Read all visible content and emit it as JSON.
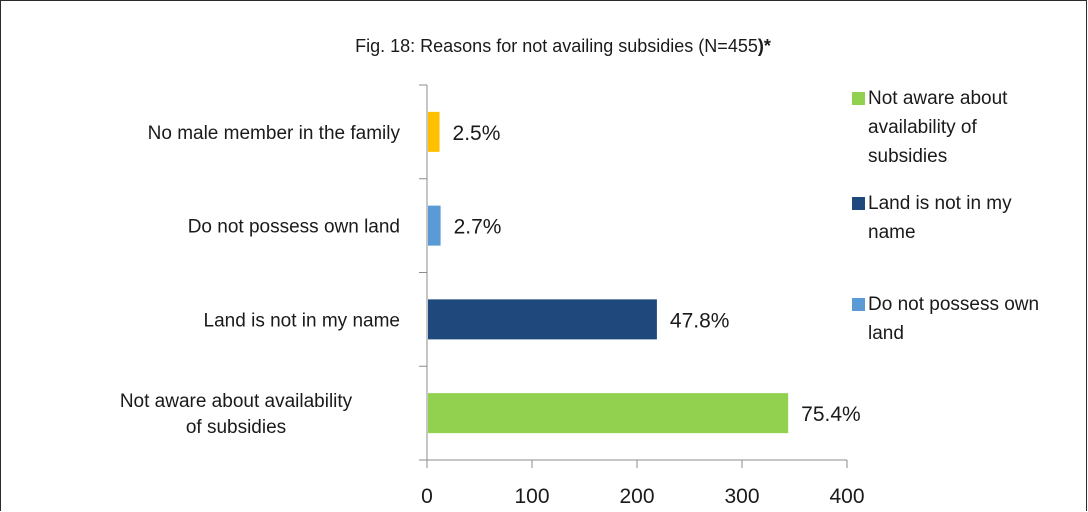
{
  "chart_data": {
    "type": "bar",
    "orientation": "horizontal",
    "title": "Fig. 18: Reasons for not availing subsidies (N=455",
    "title_suffix": ")*",
    "categories": [
      "No male member in the family",
      "Do not possess own land",
      "Land is not in my name",
      "Not aware about availability of subsidies"
    ],
    "values": [
      11,
      12,
      218,
      343
    ],
    "data_labels": [
      "2.5%",
      "2.7%",
      "47.8%",
      "75.4%"
    ],
    "colors": [
      "#ffc000",
      "#5b9bd5",
      "#1f497d",
      "#92d050"
    ],
    "xlim": [
      0,
      400
    ],
    "xticks": [
      0,
      100,
      200,
      300,
      400
    ],
    "grid": false,
    "legend_position": "right",
    "legend": [
      {
        "label": "Not aware about availability of subsidies",
        "color": "#92d050"
      },
      {
        "label": "Land is not in my name",
        "color": "#1f497d"
      },
      {
        "label": "Do not possess own land",
        "color": "#5b9bd5"
      }
    ]
  }
}
